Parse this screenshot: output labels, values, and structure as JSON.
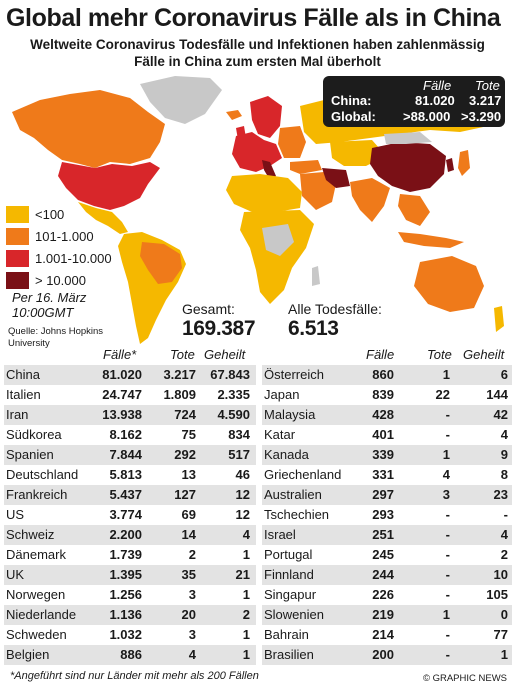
{
  "title": "Global mehr Coronavirus Fälle als in China",
  "subtitle_line1": "Weltweite Coronavirus Todesfälle und Infektionen haben zahlenmässig",
  "subtitle_line2": "Fälle in China zum ersten Mal überholt",
  "summary": {
    "header_cases": "Fälle",
    "header_deaths": "Tote",
    "rows": [
      {
        "label": "China:",
        "cases": "81.020",
        "deaths": "3.217"
      },
      {
        "label": "Global:",
        "cases": ">88.000",
        "deaths": ">3.290"
      }
    ]
  },
  "legend": [
    {
      "label": "<100",
      "color": "#f5b800"
    },
    {
      "label": "101-1.000",
      "color": "#ef7a1a"
    },
    {
      "label": "1.001-10.000",
      "color": "#d8262a"
    },
    {
      "label": "> 10.000",
      "color": "#7a1016"
    }
  ],
  "map_colors": {
    "none": "#c8c8c8",
    "ocean": "#ffffff"
  },
  "date_line1": "Per 16. März",
  "date_line2": "10:00GMT",
  "source_line1": "Quelle: Johns Hopkins",
  "source_line2": "University",
  "totals": {
    "cases_label": "Gesamt:",
    "cases_value": "169.387",
    "deaths_label": "Alle Todesfälle:",
    "deaths_value": "6.513"
  },
  "table_headers": {
    "cases": "Fälle*",
    "deaths": "Tote",
    "recovered": "Geheilt",
    "cases_right": "Fälle",
    "deaths_right": "Tote",
    "recovered_right": "Geheilt"
  },
  "table_left": [
    {
      "country": "China",
      "cases": "81.020",
      "deaths": "3.217",
      "recovered": "67.843"
    },
    {
      "country": "Italien",
      "cases": "24.747",
      "deaths": "1.809",
      "recovered": "2.335"
    },
    {
      "country": "Iran",
      "cases": "13.938",
      "deaths": "724",
      "recovered": "4.590"
    },
    {
      "country": "Südkorea",
      "cases": "8.162",
      "deaths": "75",
      "recovered": "834"
    },
    {
      "country": "Spanien",
      "cases": "7.844",
      "deaths": "292",
      "recovered": "517"
    },
    {
      "country": "Deutschland",
      "cases": "5.813",
      "deaths": "13",
      "recovered": "46"
    },
    {
      "country": "Frankreich",
      "cases": "5.437",
      "deaths": "127",
      "recovered": "12"
    },
    {
      "country": "US",
      "cases": "3.774",
      "deaths": "69",
      "recovered": "12"
    },
    {
      "country": "Schweiz",
      "cases": "2.200",
      "deaths": "14",
      "recovered": "4"
    },
    {
      "country": "Dänemark",
      "cases": "1.739",
      "deaths": "2",
      "recovered": "1"
    },
    {
      "country": "UK",
      "cases": "1.395",
      "deaths": "35",
      "recovered": "21"
    },
    {
      "country": "Norwegen",
      "cases": "1.256",
      "deaths": "3",
      "recovered": "1"
    },
    {
      "country": "Niederlande",
      "cases": "1.136",
      "deaths": "20",
      "recovered": "2"
    },
    {
      "country": "Schweden",
      "cases": "1.032",
      "deaths": "3",
      "recovered": "1"
    },
    {
      "country": "Belgien",
      "cases": "886",
      "deaths": "4",
      "recovered": "1"
    }
  ],
  "table_right": [
    {
      "country": "Österreich",
      "cases": "860",
      "deaths": "1",
      "recovered": "6"
    },
    {
      "country": "Japan",
      "cases": "839",
      "deaths": "22",
      "recovered": "144"
    },
    {
      "country": "Malaysia",
      "cases": "428",
      "deaths": "-",
      "recovered": "42"
    },
    {
      "country": "Katar",
      "cases": "401",
      "deaths": "-",
      "recovered": "4"
    },
    {
      "country": "Kanada",
      "cases": "339",
      "deaths": "1",
      "recovered": "9"
    },
    {
      "country": "Griechenland",
      "cases": "331",
      "deaths": "4",
      "recovered": "8"
    },
    {
      "country": "Australien",
      "cases": "297",
      "deaths": "3",
      "recovered": "23"
    },
    {
      "country": "Tschechien",
      "cases": "293",
      "deaths": "-",
      "recovered": "-"
    },
    {
      "country": "Israel",
      "cases": "251",
      "deaths": "-",
      "recovered": "4"
    },
    {
      "country": "Portugal",
      "cases": "245",
      "deaths": "-",
      "recovered": "2"
    },
    {
      "country": "Finnland",
      "cases": "244",
      "deaths": "-",
      "recovered": "10"
    },
    {
      "country": "Singapur",
      "cases": "226",
      "deaths": "-",
      "recovered": "105"
    },
    {
      "country": "Slowenien",
      "cases": "219",
      "deaths": "1",
      "recovered": "0"
    },
    {
      "country": "Bahrain",
      "cases": "214",
      "deaths": "-",
      "recovered": "77"
    },
    {
      "country": "Brasilien",
      "cases": "200",
      "deaths": "-",
      "recovered": "1"
    }
  ],
  "footnote": "*Angeführt sind nur Länder mit mehr als 200 Fällen",
  "credit": "© GRAPHIC NEWS"
}
